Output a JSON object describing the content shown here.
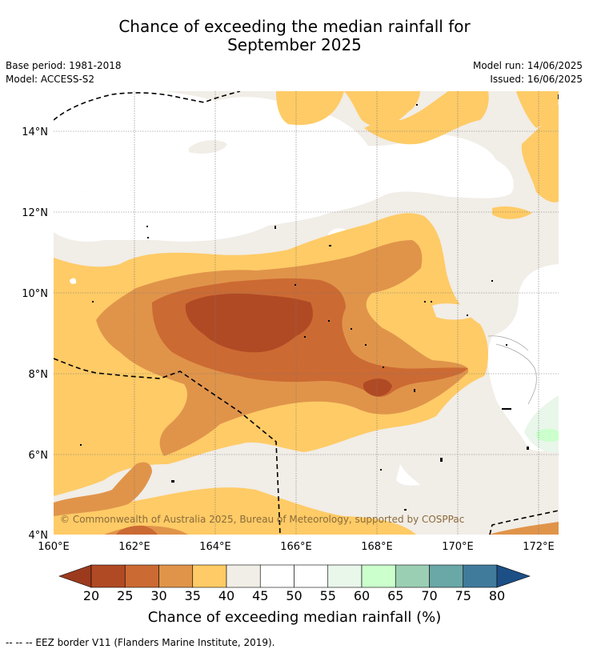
{
  "title_line1": "Chance of exceeding the median rainfall for",
  "title_line2": "September 2025",
  "base_period": "Base period: 1981-2018",
  "model": "Model: ACCESS-S2",
  "model_run": "Model run: 14/06/2025",
  "issued": "Issued: 16/06/2025",
  "copyright": "© Commonwealth of Australia 2025, Bureau of Meteorology, supported by COSPPac",
  "lat_labels": [
    "14°N",
    "12°N",
    "10°N",
    "8°N",
    "6°N",
    "4°N"
  ],
  "lon_labels": [
    "160°E",
    "162°E",
    "164°E",
    "166°E",
    "168°E",
    "170°E",
    "172°E"
  ],
  "colorbar": {
    "label": "Chance of exceeding median rainfall (%)",
    "ticks": [
      "20",
      "25",
      "30",
      "35",
      "40",
      "45",
      "50",
      "55",
      "60",
      "65",
      "70",
      "75",
      "80"
    ],
    "colors": [
      "#9c3a1e",
      "#b04a24",
      "#cc6a33",
      "#e0944a",
      "#fecb66",
      "#f1ede7",
      "#ffffff",
      "#ffffff",
      "#e9f6ea",
      "#cbffcc",
      "#9bcfb4",
      "#6aa7a7",
      "#417b9c",
      "#1c4f86"
    ]
  },
  "footer": "--  --  -- EEZ border V11 (Flanders Marine Institute, 2019)."
}
